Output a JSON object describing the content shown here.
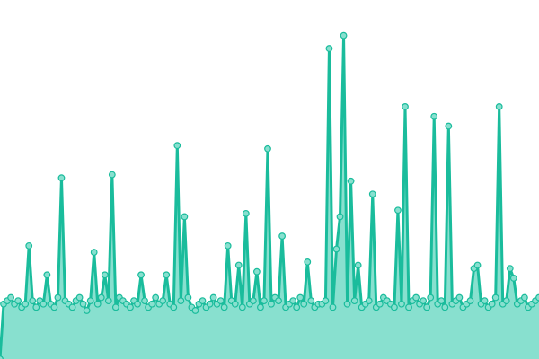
{
  "chart_data": {
    "type": "area",
    "title": "",
    "xlabel": "",
    "ylabel": "",
    "ylim": [
      0,
      111
    ],
    "grid": false,
    "axes_visible": false,
    "markers": true,
    "colors": {
      "line": "#1abc9c",
      "fill": "#88e0cf",
      "marker_fill": "#88e0cf",
      "marker_stroke": "#1abc9c"
    },
    "values": [
      0,
      17,
      18,
      19,
      17,
      18,
      16,
      17,
      35,
      18,
      16,
      18,
      17,
      26,
      17,
      16,
      19,
      56,
      18,
      17,
      16,
      18,
      19,
      17,
      15,
      18,
      33,
      17,
      19,
      26,
      18,
      57,
      16,
      19,
      18,
      17,
      16,
      18,
      17,
      26,
      18,
      16,
      17,
      19,
      17,
      18,
      26,
      17,
      16,
      66,
      18,
      44,
      19,
      16,
      15,
      17,
      18,
      16,
      17,
      19,
      17,
      18,
      16,
      35,
      18,
      17,
      29,
      16,
      45,
      17,
      18,
      27,
      16,
      18,
      65,
      17,
      19,
      18,
      38,
      16,
      17,
      18,
      16,
      19,
      17,
      30,
      18,
      16,
      17,
      17,
      18,
      96,
      16,
      34,
      44,
      100,
      17,
      55,
      18,
      29,
      16,
      17,
      18,
      51,
      16,
      17,
      19,
      18,
      17,
      16,
      46,
      17,
      78,
      16,
      18,
      19,
      17,
      18,
      16,
      19,
      75,
      17,
      18,
      16,
      72,
      17,
      18,
      19,
      16,
      17,
      18,
      28,
      29,
      17,
      18,
      16,
      17,
      19,
      78,
      17,
      18,
      28,
      25,
      17,
      18,
      19,
      16,
      17,
      18,
      19
    ]
  }
}
